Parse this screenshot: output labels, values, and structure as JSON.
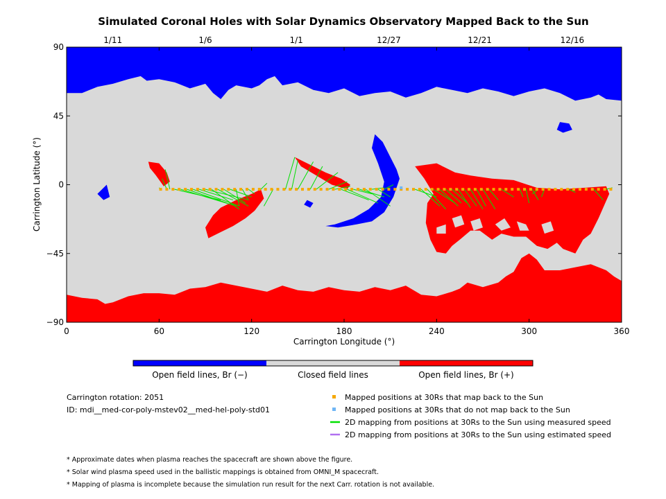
{
  "chart_data": {
    "type": "map",
    "title": "Simulated Coronal Holes with Solar Dynamics Observatory Mapped Back to the Sun",
    "xlabel": "Carrington Longitude (°)",
    "ylabel": "Carrington Latitude (°)",
    "xlim": [
      0,
      360
    ],
    "ylim": [
      -90,
      90
    ],
    "x_ticks": [
      0,
      60,
      120,
      180,
      240,
      300,
      360
    ],
    "y_ticks": [
      90,
      45,
      0,
      -45,
      -90
    ],
    "y_tick_labels": [
      "90",
      "45",
      "0",
      "−45",
      "−90"
    ],
    "date_ticks": [
      {
        "lon": 30,
        "label": "1/11"
      },
      {
        "lon": 90,
        "label": "1/6"
      },
      {
        "lon": 149,
        "label": "1/1"
      },
      {
        "lon": 209,
        "label": "12/27"
      },
      {
        "lon": 268,
        "label": "12/21"
      },
      {
        "lon": 328,
        "label": "12/16"
      }
    ],
    "colors": {
      "open_negative": "#0000ff",
      "closed": "#d9d9d9",
      "open_positive": "#ff0000",
      "mapped_point": "#f5a800",
      "unmapped_point": "#6fb6f5",
      "measured_speed_line": "#00e000",
      "estimated_speed_line": "#b070f0"
    },
    "north_boundary": [
      [
        0,
        60
      ],
      [
        10,
        60
      ],
      [
        20,
        64
      ],
      [
        30,
        66
      ],
      [
        40,
        69
      ],
      [
        48,
        71
      ],
      [
        52,
        68
      ],
      [
        60,
        69
      ],
      [
        70,
        67
      ],
      [
        80,
        63
      ],
      [
        90,
        66
      ],
      [
        95,
        60
      ],
      [
        100,
        56
      ],
      [
        105,
        62
      ],
      [
        110,
        65
      ],
      [
        120,
        63
      ],
      [
        125,
        65
      ],
      [
        130,
        69
      ],
      [
        135,
        71
      ],
      [
        140,
        65
      ],
      [
        150,
        67
      ],
      [
        160,
        62
      ],
      [
        170,
        60
      ],
      [
        180,
        63
      ],
      [
        190,
        58
      ],
      [
        200,
        60
      ],
      [
        210,
        61
      ],
      [
        220,
        57
      ],
      [
        230,
        60
      ],
      [
        240,
        64
      ],
      [
        250,
        62
      ],
      [
        260,
        60
      ],
      [
        270,
        63
      ],
      [
        280,
        61
      ],
      [
        290,
        58
      ],
      [
        300,
        61
      ],
      [
        310,
        63
      ],
      [
        320,
        60
      ],
      [
        330,
        55
      ],
      [
        340,
        57
      ],
      [
        345,
        59
      ],
      [
        350,
        56
      ],
      [
        360,
        55
      ]
    ],
    "south_boundary": [
      [
        0,
        -72
      ],
      [
        10,
        -74
      ],
      [
        20,
        -75
      ],
      [
        25,
        -78
      ],
      [
        30,
        -77
      ],
      [
        40,
        -73
      ],
      [
        50,
        -71
      ],
      [
        60,
        -71
      ],
      [
        70,
        -72
      ],
      [
        80,
        -68
      ],
      [
        90,
        -67
      ],
      [
        100,
        -64
      ],
      [
        110,
        -66
      ],
      [
        120,
        -68
      ],
      [
        130,
        -70
      ],
      [
        140,
        -66
      ],
      [
        150,
        -69
      ],
      [
        160,
        -70
      ],
      [
        170,
        -67
      ],
      [
        180,
        -69
      ],
      [
        190,
        -70
      ],
      [
        200,
        -67
      ],
      [
        210,
        -69
      ],
      [
        220,
        -66
      ],
      [
        230,
        -72
      ],
      [
        240,
        -73
      ],
      [
        250,
        -70
      ],
      [
        255,
        -68
      ],
      [
        260,
        -64
      ],
      [
        270,
        -67
      ],
      [
        280,
        -64
      ],
      [
        285,
        -60
      ],
      [
        290,
        -57
      ],
      [
        295,
        -48
      ],
      [
        300,
        -45
      ],
      [
        305,
        -49
      ],
      [
        310,
        -56
      ],
      [
        320,
        -56
      ],
      [
        330,
        -54
      ],
      [
        340,
        -52
      ],
      [
        350,
        -56
      ],
      [
        355,
        -60
      ],
      [
        360,
        -63
      ]
    ],
    "regions": [
      {
        "polarity": "positive",
        "points": [
          [
            53,
            15
          ],
          [
            60,
            14
          ],
          [
            65,
            8
          ],
          [
            67,
            2
          ],
          [
            63,
            -1
          ],
          [
            58,
            6
          ],
          [
            54,
            11
          ]
        ]
      },
      {
        "polarity": "positive",
        "points": [
          [
            90,
            -28
          ],
          [
            95,
            -20
          ],
          [
            100,
            -15
          ],
          [
            110,
            -10
          ],
          [
            120,
            -6
          ],
          [
            126,
            -3
          ],
          [
            128,
            -9
          ],
          [
            122,
            -17
          ],
          [
            116,
            -22
          ],
          [
            108,
            -27
          ],
          [
            100,
            -31
          ],
          [
            92,
            -35
          ]
        ]
      },
      {
        "polarity": "positive",
        "points": [
          [
            148,
            18
          ],
          [
            158,
            13
          ],
          [
            168,
            8
          ],
          [
            178,
            4
          ],
          [
            184,
            0
          ],
          [
            182,
            -3
          ],
          [
            172,
            0
          ],
          [
            162,
            6
          ],
          [
            152,
            12
          ]
        ]
      },
      {
        "polarity": "positive",
        "points": [
          [
            226,
            12
          ],
          [
            240,
            14
          ],
          [
            252,
            8
          ],
          [
            262,
            6
          ],
          [
            276,
            4
          ],
          [
            290,
            3
          ],
          [
            305,
            -2
          ],
          [
            320,
            -3
          ],
          [
            336,
            -2
          ],
          [
            350,
            -1
          ],
          [
            352,
            -6
          ],
          [
            345,
            -22
          ],
          [
            340,
            -32
          ],
          [
            335,
            -36
          ],
          [
            330,
            -45
          ],
          [
            322,
            -42
          ],
          [
            318,
            -38
          ],
          [
            312,
            -42
          ],
          [
            305,
            -40
          ],
          [
            298,
            -34
          ],
          [
            290,
            -34
          ],
          [
            282,
            -32
          ],
          [
            276,
            -36
          ],
          [
            268,
            -30
          ],
          [
            262,
            -30
          ],
          [
            255,
            -36
          ],
          [
            250,
            -40
          ],
          [
            246,
            -45
          ],
          [
            240,
            -44
          ],
          [
            236,
            -36
          ],
          [
            233,
            -25
          ],
          [
            234,
            -12
          ],
          [
            238,
            -6
          ],
          [
            232,
            4
          ]
        ]
      },
      {
        "polarity": "negative",
        "points": [
          [
            22,
            -4
          ],
          [
            26,
            0
          ],
          [
            28,
            -8
          ],
          [
            24,
            -10
          ],
          [
            20,
            -6
          ]
        ]
      },
      {
        "polarity": "negative",
        "points": [
          [
            200,
            33
          ],
          [
            205,
            28
          ],
          [
            210,
            18
          ],
          [
            214,
            10
          ],
          [
            216,
            4
          ],
          [
            212,
            -8
          ],
          [
            206,
            -18
          ],
          [
            198,
            -24
          ],
          [
            188,
            -26
          ],
          [
            176,
            -28
          ],
          [
            168,
            -27
          ],
          [
            174,
            -26
          ],
          [
            186,
            -22
          ],
          [
            196,
            -16
          ],
          [
            204,
            -8
          ],
          [
            206,
            2
          ],
          [
            202,
            14
          ],
          [
            198,
            24
          ]
        ]
      },
      {
        "polarity": "negative",
        "points": [
          [
            156,
            -10
          ],
          [
            160,
            -12
          ],
          [
            158,
            -15
          ],
          [
            154,
            -13
          ]
        ]
      },
      {
        "polarity": "negative",
        "points": [
          [
            320,
            41
          ],
          [
            326,
            40
          ],
          [
            328,
            36
          ],
          [
            322,
            34
          ],
          [
            318,
            36
          ]
        ]
      },
      {
        "polarity": "negative",
        "points": [
          [
            348,
            60
          ],
          [
            355,
            62
          ],
          [
            356,
            58
          ],
          [
            351,
            56
          ]
        ]
      }
    ],
    "closed_holes": [
      {
        "points": [
          [
            250,
            -22
          ],
          [
            256,
            -20
          ],
          [
            258,
            -26
          ],
          [
            252,
            -28
          ]
        ]
      },
      {
        "points": [
          [
            262,
            -24
          ],
          [
            268,
            -22
          ],
          [
            270,
            -28
          ],
          [
            264,
            -30
          ]
        ]
      },
      {
        "points": [
          [
            278,
            -26
          ],
          [
            284,
            -22
          ],
          [
            288,
            -28
          ],
          [
            282,
            -30
          ]
        ]
      },
      {
        "points": [
          [
            292,
            -24
          ],
          [
            298,
            -26
          ],
          [
            300,
            -30
          ],
          [
            294,
            -30
          ]
        ]
      },
      {
        "points": [
          [
            240,
            -28
          ],
          [
            246,
            -26
          ],
          [
            246,
            -32
          ],
          [
            240,
            -32
          ]
        ]
      },
      {
        "points": [
          [
            308,
            -26
          ],
          [
            314,
            -24
          ],
          [
            316,
            -30
          ],
          [
            310,
            -32
          ]
        ]
      }
    ],
    "mapped_lon_start": 61,
    "mapped_lon_end": 356,
    "mapped_lon_step": 4,
    "mapped_lat": -3,
    "unmapped_points": [
      [
        217,
        -2
      ]
    ],
    "field_lines_measured": [
      [
        61,
        -3,
        60,
        -2
      ],
      [
        65,
        -3,
        62,
        4
      ],
      [
        67,
        -3,
        64,
        10
      ],
      [
        70,
        -3,
        100,
        -10
      ],
      [
        74,
        -3,
        110,
        -14
      ],
      [
        78,
        -3,
        104,
        -12
      ],
      [
        82,
        -3,
        112,
        -14
      ],
      [
        86,
        -3,
        108,
        -10
      ],
      [
        90,
        -3,
        118,
        -10
      ],
      [
        94,
        -3,
        112,
        -16
      ],
      [
        98,
        -3,
        118,
        -14
      ],
      [
        102,
        -3,
        116,
        -12
      ],
      [
        106,
        -3,
        120,
        -8
      ],
      [
        110,
        -3,
        112,
        -14
      ],
      [
        114,
        -3,
        118,
        -10
      ],
      [
        118,
        -3,
        122,
        -6
      ],
      [
        126,
        -3,
        130,
        1
      ],
      [
        134,
        -3,
        128,
        -14
      ],
      [
        142,
        -3,
        148,
        18
      ],
      [
        146,
        -3,
        150,
        16
      ],
      [
        150,
        -3,
        160,
        15
      ],
      [
        158,
        -3,
        166,
        12
      ],
      [
        162,
        -3,
        176,
        8
      ],
      [
        170,
        -3,
        182,
        2
      ],
      [
        174,
        -3,
        184,
        -1
      ],
      [
        178,
        -3,
        196,
        -10
      ],
      [
        182,
        -3,
        202,
        -12
      ],
      [
        186,
        -3,
        198,
        -6
      ],
      [
        190,
        -3,
        206,
        -8
      ],
      [
        194,
        -3,
        210,
        -14
      ],
      [
        198,
        -3,
        206,
        -2
      ],
      [
        202,
        -3,
        210,
        -8
      ],
      [
        206,
        -3,
        212,
        0
      ],
      [
        226,
        -3,
        240,
        -8
      ],
      [
        230,
        -3,
        242,
        -14
      ],
      [
        234,
        -3,
        246,
        -16
      ],
      [
        238,
        -3,
        252,
        -12
      ],
      [
        242,
        -3,
        254,
        -14
      ],
      [
        246,
        -3,
        256,
        -12
      ],
      [
        250,
        -3,
        260,
        -12
      ],
      [
        254,
        -3,
        262,
        -15
      ],
      [
        258,
        -3,
        266,
        -14
      ],
      [
        262,
        -3,
        270,
        -16
      ],
      [
        266,
        -3,
        272,
        -14
      ],
      [
        270,
        -3,
        278,
        -16
      ],
      [
        274,
        -3,
        280,
        -10
      ],
      [
        282,
        -3,
        290,
        -8
      ],
      [
        294,
        -3,
        296,
        -8
      ],
      [
        298,
        -3,
        300,
        -12
      ],
      [
        302,
        -3,
        306,
        -10
      ],
      [
        306,
        -3,
        302,
        -6
      ],
      [
        310,
        -3,
        308,
        -8
      ],
      [
        326,
        -3,
        330,
        -5
      ],
      [
        342,
        -3,
        348,
        -10
      ],
      [
        350,
        -3,
        354,
        -2
      ]
    ],
    "legend": {
      "colorbar": [
        {
          "label": "Open field lines, Br (−)",
          "color": "#0000ff"
        },
        {
          "label": "Closed field lines",
          "color": "#d9d9d9"
        },
        {
          "label": "Open field lines, Br (+)",
          "color": "#ff0000"
        }
      ],
      "markers": [
        {
          "label": "Mapped positions at 30Rs that map back to the Sun",
          "type": "square",
          "color": "#f5a800"
        },
        {
          "label": "Mapped positions at 30Rs that do not map back to the Sun",
          "type": "square",
          "color": "#6fb6f5"
        },
        {
          "label": "2D mapping from positions at 30Rs to the Sun using measured speed",
          "type": "line",
          "color": "#00e000"
        },
        {
          "label": "2D mapping from positions at 30Rs to the Sun using estimated speed",
          "type": "line",
          "color": "#b070f0"
        }
      ]
    }
  },
  "info": {
    "rotation": "Carrington rotation: 2051",
    "id": "ID: mdi__med-cor-poly-mstev02__med-hel-poly-std01"
  },
  "notes": [
    "* Approximate dates when plasma reaches the spacecraft are shown above the figure.",
    "* Solar wind plasma speed used in the ballistic mappings is obtained from OMNI_M spacecraft.",
    "* Mapping of plasma is incomplete because the simulation run result for the next Carr. rotation is not available."
  ]
}
